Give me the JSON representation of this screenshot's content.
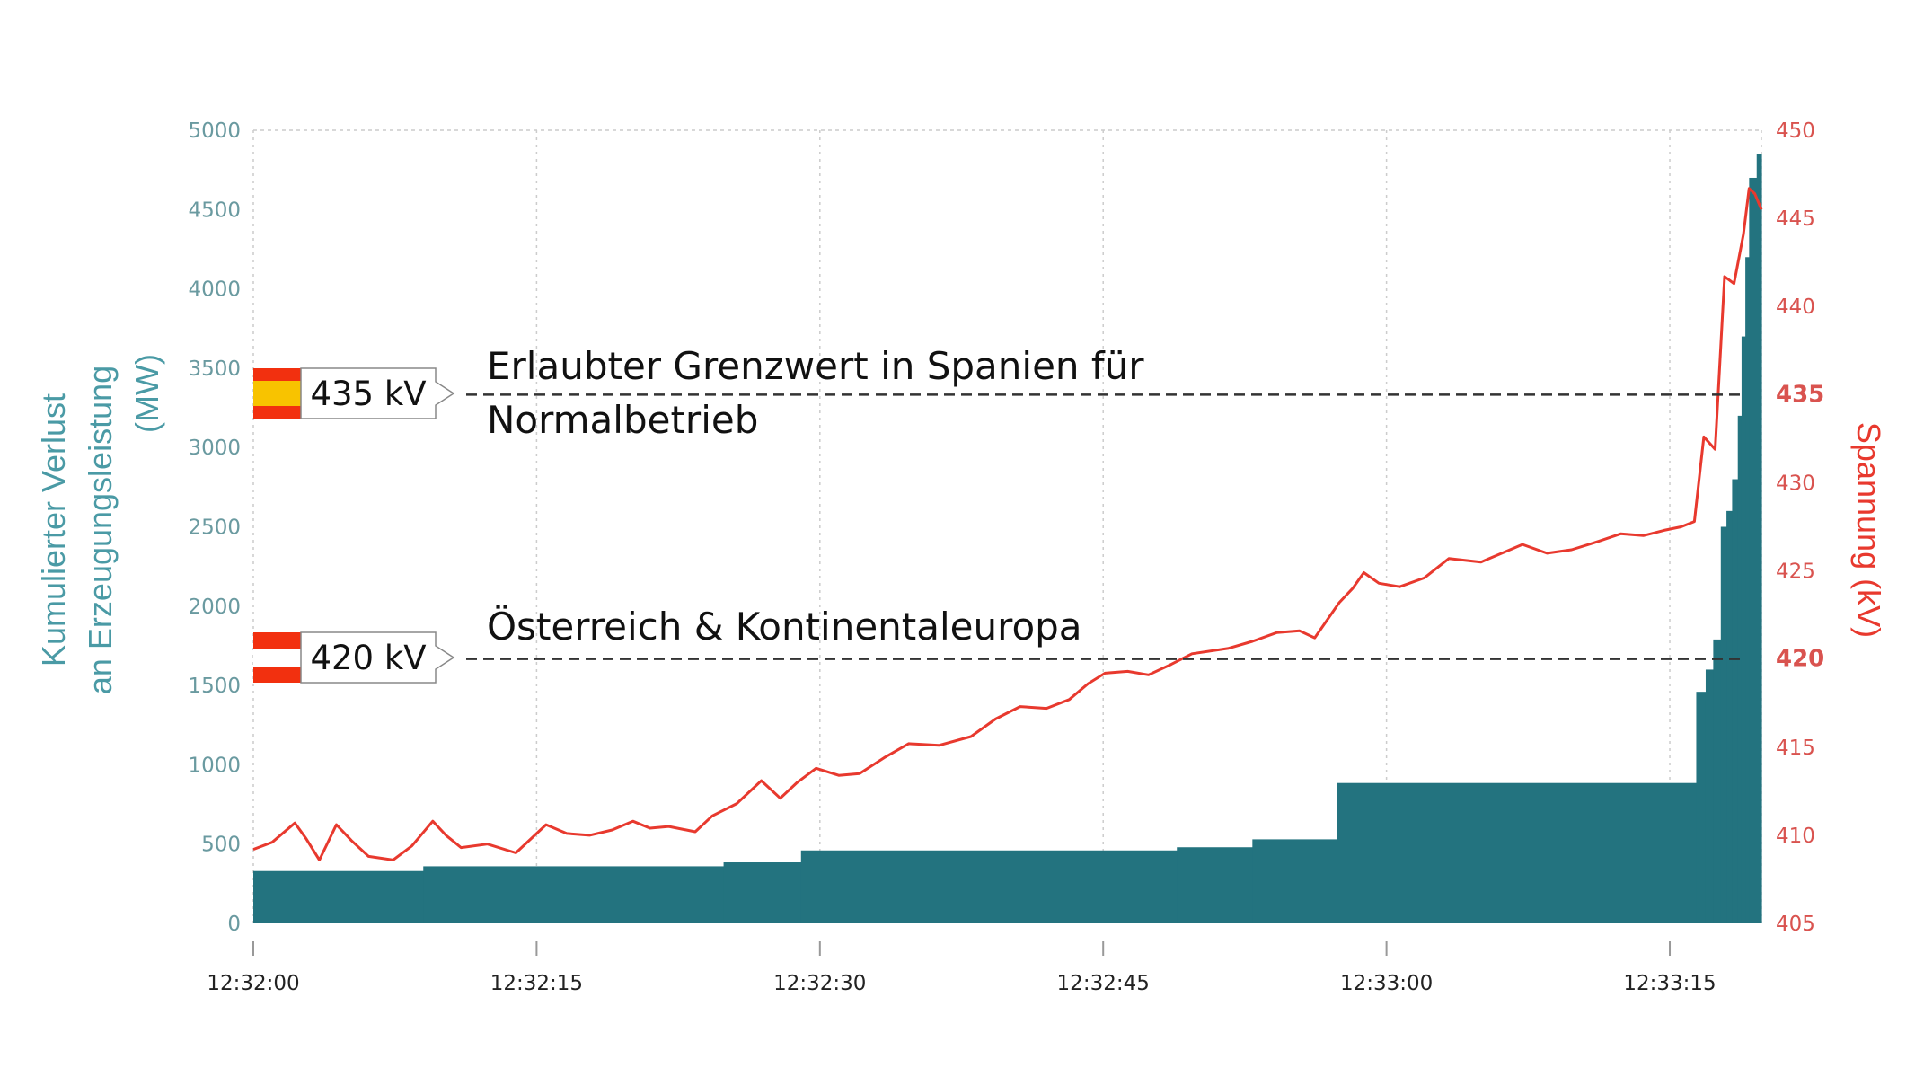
{
  "chart_data": {
    "type": "bar+line",
    "y_left": {
      "label_lines": [
        "Kumulierter Verlust",
        "an Erzeugungsleistung",
        "(MW)"
      ],
      "range": [
        0,
        5000
      ],
      "ticks": [
        "0",
        "500",
        "1000",
        "1500",
        "2000",
        "2500",
        "3000",
        "3500",
        "4000",
        "4500",
        "5000"
      ],
      "color": "#4a9aa5"
    },
    "y_right": {
      "label": "Spannung  (kV)",
      "range": [
        405,
        450
      ],
      "ticks": [
        "405",
        "410",
        "415",
        "420",
        "425",
        "430",
        "435",
        "440",
        "445",
        "450"
      ],
      "bold_ticks": [
        "420",
        "435"
      ],
      "color": "#e8392e"
    },
    "x_axis": {
      "range_seconds_after_12_32_00": [
        0,
        79.85
      ],
      "ticks": [
        {
          "t": 0,
          "label": "12:32:00"
        },
        {
          "t": 15,
          "label": "12:32:15"
        },
        {
          "t": 30,
          "label": "12:32:30"
        },
        {
          "t": 45,
          "label": "12:32:45"
        },
        {
          "t": 60,
          "label": "12:33:00"
        },
        {
          "t": 75,
          "label": "12:33:15"
        }
      ]
    },
    "grid": true,
    "series": [
      {
        "kind": "step-area",
        "axis": "left",
        "color": "#23737f",
        "points": [
          [
            0,
            330
          ],
          [
            9,
            360
          ],
          [
            24.9,
            385
          ],
          [
            29,
            460
          ],
          [
            48.9,
            480
          ],
          [
            52.9,
            530
          ],
          [
            57.4,
            885
          ],
          [
            76.4,
            1460
          ],
          [
            76.9,
            1600
          ],
          [
            77.3,
            1790
          ],
          [
            77.7,
            2500
          ],
          [
            78.0,
            2600
          ],
          [
            78.3,
            2800
          ],
          [
            78.6,
            3200
          ],
          [
            78.8,
            3700
          ],
          [
            79.0,
            4200
          ],
          [
            79.2,
            4700
          ],
          [
            79.6,
            4850
          ],
          [
            79.85,
            4850
          ]
        ]
      },
      {
        "kind": "line",
        "axis": "right",
        "color": "#e8392e",
        "points": [
          [
            0,
            409.2
          ],
          [
            1,
            409.6
          ],
          [
            2.2,
            410.7
          ],
          [
            2.8,
            409.8
          ],
          [
            3.5,
            408.6
          ],
          [
            4.4,
            410.6
          ],
          [
            5.2,
            409.7
          ],
          [
            6.1,
            408.8
          ],
          [
            7.4,
            408.6
          ],
          [
            8.4,
            409.4
          ],
          [
            9.5,
            410.8
          ],
          [
            10.2,
            410.0
          ],
          [
            11,
            409.3
          ],
          [
            12.4,
            409.5
          ],
          [
            13.9,
            409.0
          ],
          [
            15.5,
            410.6
          ],
          [
            16.6,
            410.1
          ],
          [
            17.8,
            410.0
          ],
          [
            19,
            410.3
          ],
          [
            20.1,
            410.8
          ],
          [
            21,
            410.4
          ],
          [
            22,
            410.5
          ],
          [
            23.4,
            410.2
          ],
          [
            24.3,
            411.1
          ],
          [
            25.6,
            411.8
          ],
          [
            26.9,
            413.1
          ],
          [
            27.9,
            412.1
          ],
          [
            28.8,
            413.0
          ],
          [
            29.8,
            413.8
          ],
          [
            31,
            413.4
          ],
          [
            32.1,
            413.5
          ],
          [
            33.4,
            414.4
          ],
          [
            34.7,
            415.2
          ],
          [
            36.3,
            415.1
          ],
          [
            38,
            415.6
          ],
          [
            39.3,
            416.6
          ],
          [
            40.6,
            417.3
          ],
          [
            42,
            417.2
          ],
          [
            43.2,
            417.7
          ],
          [
            44.2,
            418.6
          ],
          [
            45.1,
            419.2
          ],
          [
            46.3,
            419.3
          ],
          [
            47.4,
            419.1
          ],
          [
            48.6,
            419.7
          ],
          [
            49.7,
            420.3
          ],
          [
            51.6,
            420.6
          ],
          [
            52.9,
            421.0
          ],
          [
            54.2,
            421.5
          ],
          [
            55.4,
            421.6
          ],
          [
            56.2,
            421.2
          ],
          [
            57.5,
            423.2
          ],
          [
            58.2,
            424.0
          ],
          [
            58.8,
            424.9
          ],
          [
            59.6,
            424.3
          ],
          [
            60.7,
            424.1
          ],
          [
            62,
            424.6
          ],
          [
            63.3,
            425.7
          ],
          [
            65,
            425.5
          ],
          [
            67.2,
            426.5
          ],
          [
            68.5,
            426.0
          ],
          [
            69.8,
            426.2
          ],
          [
            71,
            426.6
          ],
          [
            72.4,
            427.1
          ],
          [
            73.6,
            427.0
          ],
          [
            74.7,
            427.3
          ],
          [
            75.6,
            427.5
          ],
          [
            76.3,
            427.8
          ],
          [
            76.8,
            432.6
          ],
          [
            77.4,
            431.9
          ],
          [
            77.9,
            441.7
          ],
          [
            78.4,
            441.3
          ],
          [
            78.9,
            444.1
          ],
          [
            79.2,
            446.7
          ],
          [
            79.5,
            446.4
          ],
          [
            79.85,
            445.5
          ]
        ]
      }
    ],
    "annotations": [
      {
        "kv": 435,
        "badge": "435 kV",
        "flag": "spain-flag-icon",
        "lines": [
          "Erlaubter Grenzwert in Spanien für",
          "Normalbetrieb"
        ]
      },
      {
        "kv": 420,
        "badge": "420 kV",
        "flag": "austria-flag-icon",
        "lines": [
          "Österreich & Kontinentaleuropa"
        ]
      }
    ]
  }
}
